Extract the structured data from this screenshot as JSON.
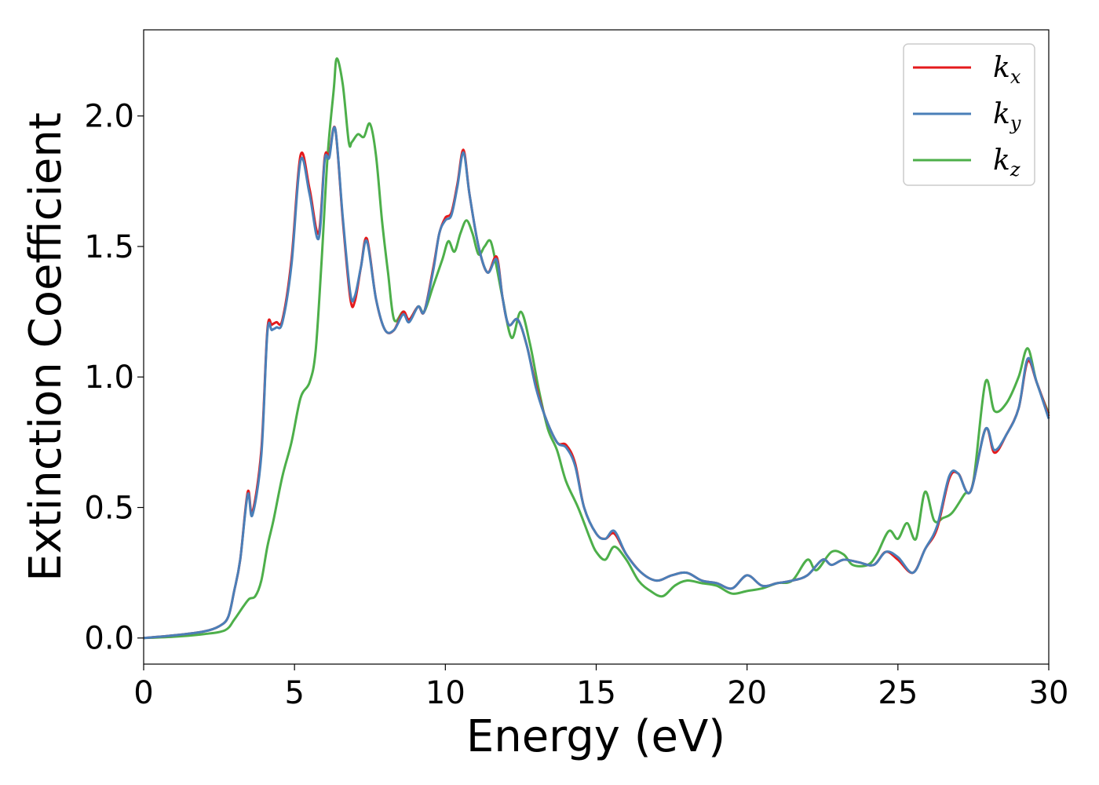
{
  "chart_data": {
    "type": "line",
    "xlabel": "Energy (eV)",
    "ylabel": "Extinction Coefficient",
    "xlim": [
      0,
      30
    ],
    "ylim": [
      -0.1,
      2.33
    ],
    "xticks": [
      "0",
      "5",
      "10",
      "15",
      "20",
      "25",
      "30"
    ],
    "yticks": [
      "0.0",
      "0.5",
      "1.0",
      "1.5",
      "2.0"
    ],
    "grid": false,
    "legend_position": "top-right",
    "series": [
      {
        "name": "k_x",
        "label_base": "k",
        "label_sub": "x",
        "color": "#e41a1c",
        "x": [
          0,
          1,
          2,
          2.5,
          2.8,
          3.0,
          3.2,
          3.45,
          3.6,
          3.9,
          4.1,
          4.25,
          4.4,
          4.6,
          4.9,
          5.2,
          5.5,
          5.8,
          6.0,
          6.15,
          6.35,
          6.6,
          6.85,
          7.0,
          7.2,
          7.4,
          7.7,
          8.0,
          8.3,
          8.6,
          8.8,
          9.1,
          9.3,
          9.6,
          9.8,
          10.0,
          10.2,
          10.4,
          10.6,
          10.8,
          11.1,
          11.4,
          11.7,
          11.9,
          12.1,
          12.4,
          12.7,
          13.0,
          13.3,
          13.7,
          14.0,
          14.3,
          14.6,
          15.0,
          15.3,
          15.6,
          16.0,
          16.5,
          17.0,
          17.5,
          18.0,
          18.5,
          19.0,
          19.5,
          20.0,
          20.5,
          21.0,
          21.5,
          22.0,
          22.5,
          22.8,
          23.2,
          23.7,
          24.2,
          24.6,
          25.0,
          25.5,
          25.9,
          26.3,
          26.7,
          27.0,
          27.4,
          27.9,
          28.2,
          28.6,
          29.0,
          29.3,
          29.6,
          30.0
        ],
        "y": [
          0,
          0.01,
          0.025,
          0.045,
          0.08,
          0.18,
          0.3,
          0.56,
          0.48,
          0.72,
          1.18,
          1.2,
          1.21,
          1.22,
          1.45,
          1.85,
          1.72,
          1.55,
          1.84,
          1.85,
          1.95,
          1.6,
          1.3,
          1.29,
          1.42,
          1.53,
          1.3,
          1.18,
          1.18,
          1.25,
          1.22,
          1.27,
          1.25,
          1.42,
          1.55,
          1.61,
          1.63,
          1.74,
          1.87,
          1.7,
          1.5,
          1.4,
          1.46,
          1.3,
          1.2,
          1.22,
          1.12,
          0.97,
          0.85,
          0.75,
          0.74,
          0.67,
          0.5,
          0.4,
          0.38,
          0.4,
          0.32,
          0.25,
          0.22,
          0.24,
          0.25,
          0.22,
          0.21,
          0.19,
          0.24,
          0.2,
          0.21,
          0.22,
          0.24,
          0.3,
          0.28,
          0.3,
          0.29,
          0.28,
          0.33,
          0.3,
          0.25,
          0.34,
          0.42,
          0.61,
          0.63,
          0.56,
          0.8,
          0.71,
          0.78,
          0.88,
          1.06,
          0.98,
          0.85
        ]
      },
      {
        "name": "k_y",
        "label_base": "k",
        "label_sub": "y",
        "color": "#4a7fb8",
        "x": [
          0,
          1,
          2,
          2.5,
          2.8,
          3.0,
          3.2,
          3.45,
          3.6,
          3.9,
          4.1,
          4.25,
          4.4,
          4.6,
          4.9,
          5.2,
          5.5,
          5.8,
          6.0,
          6.15,
          6.35,
          6.6,
          6.85,
          7.0,
          7.2,
          7.4,
          7.7,
          8.0,
          8.3,
          8.6,
          8.8,
          9.1,
          9.3,
          9.6,
          9.8,
          10.0,
          10.2,
          10.4,
          10.6,
          10.8,
          11.1,
          11.4,
          11.7,
          11.9,
          12.1,
          12.4,
          12.7,
          13.0,
          13.3,
          13.7,
          14.0,
          14.3,
          14.6,
          15.0,
          15.3,
          15.6,
          16.0,
          16.5,
          17.0,
          17.5,
          18.0,
          18.5,
          19.0,
          19.5,
          20.0,
          20.5,
          21.0,
          21.5,
          22.0,
          22.5,
          22.8,
          23.2,
          23.7,
          24.2,
          24.6,
          25.0,
          25.5,
          25.9,
          26.3,
          26.7,
          27.0,
          27.4,
          27.9,
          28.2,
          28.6,
          29.0,
          29.3,
          29.6,
          30.0
        ],
        "y": [
          0,
          0.01,
          0.025,
          0.045,
          0.08,
          0.18,
          0.3,
          0.55,
          0.47,
          0.7,
          1.17,
          1.18,
          1.19,
          1.21,
          1.43,
          1.83,
          1.7,
          1.53,
          1.83,
          1.84,
          1.95,
          1.61,
          1.32,
          1.31,
          1.42,
          1.52,
          1.3,
          1.18,
          1.18,
          1.24,
          1.21,
          1.27,
          1.25,
          1.41,
          1.55,
          1.6,
          1.62,
          1.73,
          1.86,
          1.7,
          1.5,
          1.4,
          1.45,
          1.3,
          1.2,
          1.22,
          1.12,
          0.96,
          0.85,
          0.75,
          0.73,
          0.66,
          0.5,
          0.4,
          0.38,
          0.41,
          0.32,
          0.25,
          0.22,
          0.24,
          0.25,
          0.22,
          0.21,
          0.19,
          0.24,
          0.2,
          0.21,
          0.22,
          0.24,
          0.3,
          0.28,
          0.3,
          0.29,
          0.28,
          0.33,
          0.31,
          0.25,
          0.34,
          0.43,
          0.62,
          0.63,
          0.56,
          0.8,
          0.72,
          0.78,
          0.88,
          1.07,
          0.98,
          0.84
        ]
      },
      {
        "name": "k_z",
        "label_base": "k",
        "label_sub": "z",
        "color": "#4daf4a",
        "x": [
          0,
          1,
          2,
          2.7,
          3.0,
          3.3,
          3.5,
          3.7,
          3.9,
          4.1,
          4.3,
          4.6,
          4.9,
          5.2,
          5.5,
          5.7,
          5.9,
          6.1,
          6.3,
          6.4,
          6.6,
          6.8,
          6.9,
          7.1,
          7.3,
          7.5,
          7.7,
          7.9,
          8.1,
          8.3,
          8.6,
          8.8,
          9.1,
          9.3,
          9.6,
          9.9,
          10.1,
          10.3,
          10.5,
          10.7,
          10.9,
          11.1,
          11.3,
          11.5,
          11.7,
          11.9,
          12.2,
          12.5,
          12.8,
          13.1,
          13.4,
          13.7,
          14.0,
          14.4,
          14.8,
          15.0,
          15.3,
          15.6,
          16.0,
          16.4,
          16.8,
          17.2,
          17.6,
          18.0,
          18.5,
          19.0,
          19.5,
          20.0,
          20.5,
          21.0,
          21.5,
          22.0,
          22.3,
          22.8,
          23.2,
          23.5,
          24.0,
          24.3,
          24.7,
          25.0,
          25.3,
          25.6,
          25.9,
          26.2,
          26.5,
          26.8,
          27.2,
          27.5,
          27.9,
          28.2,
          28.6,
          29.0,
          29.3,
          29.6,
          30.0
        ],
        "y": [
          0,
          0.005,
          0.015,
          0.03,
          0.07,
          0.12,
          0.15,
          0.16,
          0.22,
          0.35,
          0.45,
          0.62,
          0.75,
          0.92,
          0.98,
          1.1,
          1.45,
          1.85,
          2.1,
          2.22,
          2.12,
          1.9,
          1.9,
          1.93,
          1.92,
          1.97,
          1.85,
          1.6,
          1.4,
          1.22,
          1.25,
          1.22,
          1.27,
          1.25,
          1.35,
          1.45,
          1.52,
          1.48,
          1.55,
          1.6,
          1.55,
          1.47,
          1.5,
          1.52,
          1.42,
          1.3,
          1.15,
          1.25,
          1.13,
          0.95,
          0.8,
          0.72,
          0.6,
          0.5,
          0.38,
          0.33,
          0.3,
          0.35,
          0.3,
          0.22,
          0.18,
          0.16,
          0.2,
          0.22,
          0.21,
          0.2,
          0.17,
          0.18,
          0.19,
          0.21,
          0.22,
          0.3,
          0.26,
          0.33,
          0.32,
          0.28,
          0.28,
          0.32,
          0.41,
          0.38,
          0.44,
          0.38,
          0.56,
          0.45,
          0.46,
          0.48,
          0.55,
          0.6,
          0.98,
          0.87,
          0.9,
          1.0,
          1.11,
          0.98,
          0.86
        ]
      }
    ]
  }
}
